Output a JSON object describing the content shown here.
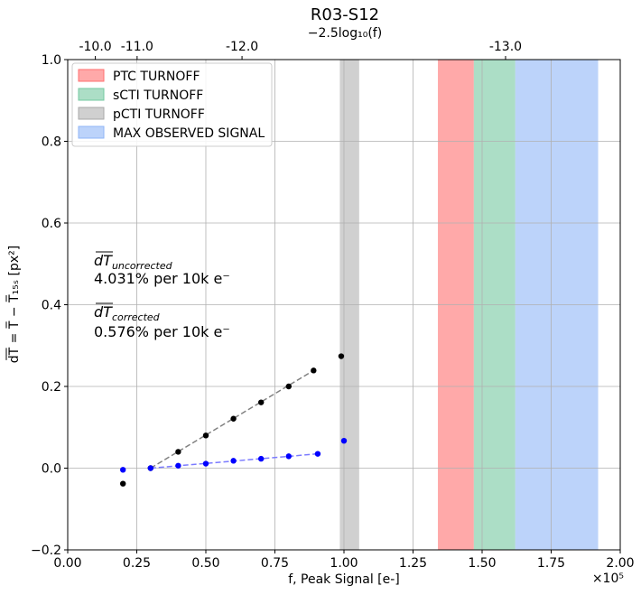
{
  "chart_data": {
    "type": "scatter",
    "title": "R03-S12",
    "top_axis_label": "−2.5log₁₀(f)",
    "xlabel": "f, Peak Signal [e-]",
    "ylabel": "d̅T̅ = T̅ − T̅₁₅ₛ   [px²]",
    "x_offset_text": "×10⁵",
    "xlim": [
      0,
      200000
    ],
    "ylim": [
      -0.2,
      1.0
    ],
    "grid": true,
    "x_ticks": [
      0,
      25000,
      50000,
      75000,
      100000,
      125000,
      150000,
      175000,
      200000
    ],
    "x_tick_labels": [
      "0.00",
      "0.25",
      "0.50",
      "0.75",
      "1.00",
      "1.25",
      "1.50",
      "1.75",
      "2.00"
    ],
    "y_ticks": [
      -0.2,
      0.0,
      0.2,
      0.4,
      0.6,
      0.8,
      1.0
    ],
    "y_tick_labels": [
      "−0.2",
      "0.0",
      "0.2",
      "0.4",
      "0.6",
      "0.8",
      "1.0"
    ],
    "top_ticks": [
      {
        "label": "-10.0",
        "x": 10000
      },
      {
        "label": "-11.0",
        "x": 25119
      },
      {
        "label": "-12.0",
        "x": 63096
      },
      {
        "label": "-13.0",
        "x": 158489
      }
    ],
    "bands": [
      {
        "name": "PTC TURNOFF",
        "x0": 134000,
        "x1": 147000,
        "color": "#ff6f6f",
        "opacity": 0.6
      },
      {
        "name": "sCTI TURNOFF",
        "x0": 147000,
        "x1": 162000,
        "color": "#74c8a0",
        "opacity": 0.6
      },
      {
        "name": "pCTI TURNOFF",
        "x0": 98500,
        "x1": 105500,
        "color": "#a9a9a9",
        "opacity": 0.55
      },
      {
        "name": "MAX OBSERVED SIGNAL",
        "x0": 162000,
        "x1": 192000,
        "color": "#8fb6f7",
        "opacity": 0.6
      }
    ],
    "series": [
      {
        "name": "uncorrected",
        "color": "#000000",
        "points": [
          {
            "x": 20000,
            "y": -0.038
          },
          {
            "x": 30000,
            "y": 0.0
          },
          {
            "x": 40000,
            "y": 0.04
          },
          {
            "x": 50000,
            "y": 0.08
          },
          {
            "x": 60000,
            "y": 0.121
          },
          {
            "x": 70000,
            "y": 0.161
          },
          {
            "x": 80000,
            "y": 0.2
          },
          {
            "x": 89000,
            "y": 0.239
          },
          {
            "x": 99000,
            "y": 0.274
          }
        ],
        "fit": {
          "x0": 30000,
          "y0": 0.0,
          "x1": 89000,
          "y1": 0.239,
          "color": "#808080"
        }
      },
      {
        "name": "corrected",
        "color": "#0000ff",
        "points": [
          {
            "x": 20000,
            "y": -0.004
          },
          {
            "x": 30000,
            "y": 0.0
          },
          {
            "x": 40000,
            "y": 0.006
          },
          {
            "x": 50000,
            "y": 0.011
          },
          {
            "x": 60000,
            "y": 0.018
          },
          {
            "x": 70000,
            "y": 0.023
          },
          {
            "x": 80000,
            "y": 0.029
          },
          {
            "x": 90500,
            "y": 0.035
          },
          {
            "x": 100000,
            "y": 0.067
          }
        ],
        "fit": {
          "x0": 30000,
          "y0": 0.0,
          "x1": 90500,
          "y1": 0.035,
          "color": "#7b7bff"
        }
      }
    ]
  },
  "annotations": {
    "uncorrected_label": "dT",
    "uncorrected_sub": "uncorrected",
    "uncorrected_value": "4.031% per 10k e⁻",
    "corrected_label": "dT",
    "corrected_sub": "corrected",
    "corrected_value": "0.576% per 10k e⁻"
  }
}
